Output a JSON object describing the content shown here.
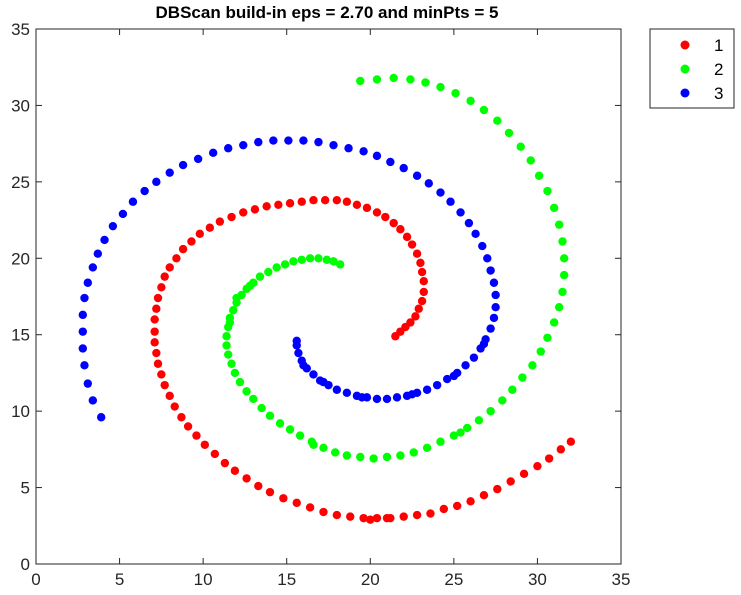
{
  "chart_data": {
    "type": "scatter",
    "title": "DBScan build-in  eps = 2.70 and minPts = 5",
    "xlabel": "",
    "ylabel": "",
    "xlim": [
      0,
      35
    ],
    "ylim": [
      0,
      35
    ],
    "xticks": [
      "0",
      "5",
      "10",
      "15",
      "20",
      "25",
      "30",
      "35"
    ],
    "yticks": [
      "0",
      "5",
      "10",
      "15",
      "20",
      "25",
      "30",
      "35"
    ],
    "grid": false,
    "legend_position": "outside-top-right",
    "series": [
      {
        "name": "1",
        "color": "#ff0000",
        "points": [
          [
            21.5,
            14.9
          ],
          [
            21.8,
            15.2
          ],
          [
            22.1,
            15.5
          ],
          [
            22.4,
            15.8
          ],
          [
            22.7,
            16.2
          ],
          [
            22.9,
            16.7
          ],
          [
            23.1,
            17.2
          ],
          [
            23.2,
            17.8
          ],
          [
            23.2,
            18.5
          ],
          [
            23.1,
            19.1
          ],
          [
            23.0,
            19.7
          ],
          [
            22.8,
            20.3
          ],
          [
            22.5,
            20.9
          ],
          [
            22.2,
            21.4
          ],
          [
            21.8,
            21.9
          ],
          [
            21.4,
            22.3
          ],
          [
            20.9,
            22.7
          ],
          [
            20.4,
            23.0
          ],
          [
            19.8,
            23.3
          ],
          [
            19.2,
            23.5
          ],
          [
            18.6,
            23.7
          ],
          [
            18.0,
            23.8
          ],
          [
            17.3,
            23.8
          ],
          [
            16.6,
            23.8
          ],
          [
            15.9,
            23.7
          ],
          [
            15.2,
            23.6
          ],
          [
            14.5,
            23.5
          ],
          [
            13.8,
            23.4
          ],
          [
            13.1,
            23.2
          ],
          [
            12.4,
            23.0
          ],
          [
            11.7,
            22.7
          ],
          [
            11.0,
            22.4
          ],
          [
            10.4,
            22.0
          ],
          [
            9.8,
            21.6
          ],
          [
            9.3,
            21.1
          ],
          [
            8.8,
            20.6
          ],
          [
            8.4,
            20.0
          ],
          [
            8.0,
            19.4
          ],
          [
            7.7,
            18.8
          ],
          [
            7.5,
            18.1
          ],
          [
            7.3,
            17.4
          ],
          [
            7.2,
            16.7
          ],
          [
            7.1,
            16.0
          ],
          [
            7.1,
            15.2
          ],
          [
            7.1,
            14.5
          ],
          [
            7.2,
            13.8
          ],
          [
            7.3,
            13.1
          ],
          [
            7.5,
            12.4
          ],
          [
            7.7,
            11.7
          ],
          [
            8.0,
            11.0
          ],
          [
            8.3,
            10.3
          ],
          [
            8.7,
            9.6
          ],
          [
            9.1,
            9.0
          ],
          [
            9.6,
            8.4
          ],
          [
            10.1,
            7.8
          ],
          [
            10.7,
            7.2
          ],
          [
            11.3,
            6.6
          ],
          [
            11.9,
            6.1
          ],
          [
            12.6,
            5.6
          ],
          [
            13.3,
            5.1
          ],
          [
            14.0,
            4.7
          ],
          [
            14.8,
            4.3
          ],
          [
            15.6,
            4.0
          ],
          [
            16.4,
            3.7
          ],
          [
            17.2,
            3.4
          ],
          [
            18.0,
            3.2
          ],
          [
            18.8,
            3.1
          ],
          [
            19.6,
            3.0
          ],
          [
            20.4,
            3.0
          ],
          [
            21.2,
            3.0
          ],
          [
            22.0,
            3.1
          ],
          [
            22.8,
            3.2
          ],
          [
            23.6,
            3.3
          ],
          [
            24.4,
            3.6
          ],
          [
            25.2,
            3.8
          ],
          [
            26.0,
            4.1
          ],
          [
            26.8,
            4.5
          ],
          [
            27.6,
            4.9
          ],
          [
            28.4,
            5.4
          ],
          [
            29.2,
            5.9
          ],
          [
            30.0,
            6.4
          ],
          [
            30.7,
            6.9
          ],
          [
            31.4,
            7.5
          ],
          [
            32.0,
            8.0
          ],
          [
            20.0,
            2.9
          ],
          [
            21.0,
            3.0
          ]
        ]
      },
      {
        "name": "2",
        "color": "#00ff00",
        "points": [
          [
            18.2,
            19.6
          ],
          [
            17.8,
            19.8
          ],
          [
            17.4,
            19.9
          ],
          [
            16.9,
            20.0
          ],
          [
            16.4,
            20.0
          ],
          [
            15.9,
            19.9
          ],
          [
            15.4,
            19.8
          ],
          [
            14.9,
            19.6
          ],
          [
            14.4,
            19.4
          ],
          [
            13.9,
            19.1
          ],
          [
            13.4,
            18.8
          ],
          [
            13.0,
            18.4
          ],
          [
            12.6,
            18.0
          ],
          [
            12.3,
            17.6
          ],
          [
            12.0,
            17.1
          ],
          [
            11.8,
            16.6
          ],
          [
            11.6,
            16.1
          ],
          [
            11.5,
            15.5
          ],
          [
            11.4,
            14.9
          ],
          [
            11.4,
            14.3
          ],
          [
            11.5,
            13.7
          ],
          [
            11.7,
            13.1
          ],
          [
            11.9,
            12.5
          ],
          [
            12.2,
            11.9
          ],
          [
            12.6,
            11.3
          ],
          [
            13.0,
            10.8
          ],
          [
            13.5,
            10.2
          ],
          [
            14.0,
            9.7
          ],
          [
            14.6,
            9.2
          ],
          [
            15.2,
            8.8
          ],
          [
            15.8,
            8.4
          ],
          [
            16.5,
            8.0
          ],
          [
            17.2,
            7.6
          ],
          [
            17.9,
            7.3
          ],
          [
            18.6,
            7.1
          ],
          [
            19.4,
            7.0
          ],
          [
            20.2,
            6.9
          ],
          [
            21.0,
            7.0
          ],
          [
            21.8,
            7.1
          ],
          [
            22.6,
            7.3
          ],
          [
            23.4,
            7.6
          ],
          [
            24.2,
            8.0
          ],
          [
            25.0,
            8.4
          ],
          [
            25.8,
            8.9
          ],
          [
            26.5,
            9.4
          ],
          [
            27.2,
            10.0
          ],
          [
            27.9,
            10.7
          ],
          [
            28.5,
            11.4
          ],
          [
            29.1,
            12.2
          ],
          [
            29.7,
            13.0
          ],
          [
            30.2,
            13.9
          ],
          [
            30.6,
            14.8
          ],
          [
            31.0,
            15.8
          ],
          [
            31.3,
            16.8
          ],
          [
            31.5,
            17.8
          ],
          [
            31.6,
            18.9
          ],
          [
            31.6,
            20.0
          ],
          [
            31.5,
            21.1
          ],
          [
            31.3,
            22.2
          ],
          [
            31.0,
            23.3
          ],
          [
            30.6,
            24.4
          ],
          [
            30.1,
            25.4
          ],
          [
            29.6,
            26.4
          ],
          [
            29.0,
            27.3
          ],
          [
            28.3,
            28.2
          ],
          [
            27.6,
            29.0
          ],
          [
            26.8,
            29.7
          ],
          [
            26.0,
            30.3
          ],
          [
            25.1,
            30.8
          ],
          [
            24.2,
            31.2
          ],
          [
            23.3,
            31.5
          ],
          [
            22.4,
            31.7
          ],
          [
            21.4,
            31.8
          ],
          [
            20.4,
            31.7
          ],
          [
            19.4,
            31.6
          ],
          [
            12.0,
            17.4
          ],
          [
            11.6,
            15.8
          ],
          [
            12.8,
            18.2
          ],
          [
            16.6,
            7.8
          ],
          [
            25.4,
            8.6
          ]
        ]
      },
      {
        "name": "3",
        "color": "#0000ff",
        "points": [
          [
            15.6,
            14.6
          ],
          [
            15.6,
            14.3
          ],
          [
            15.7,
            13.8
          ],
          [
            15.9,
            13.3
          ],
          [
            16.2,
            12.8
          ],
          [
            16.6,
            12.4
          ],
          [
            17.0,
            12.0
          ],
          [
            17.5,
            11.7
          ],
          [
            18.0,
            11.4
          ],
          [
            18.6,
            11.2
          ],
          [
            19.2,
            11.0
          ],
          [
            19.8,
            10.9
          ],
          [
            20.4,
            10.8
          ],
          [
            21.0,
            10.8
          ],
          [
            21.6,
            10.9
          ],
          [
            22.2,
            11.0
          ],
          [
            22.8,
            11.2
          ],
          [
            23.4,
            11.4
          ],
          [
            24.0,
            11.7
          ],
          [
            24.6,
            12.1
          ],
          [
            25.2,
            12.5
          ],
          [
            25.7,
            13.0
          ],
          [
            26.2,
            13.5
          ],
          [
            26.6,
            14.1
          ],
          [
            26.9,
            14.7
          ],
          [
            27.2,
            15.4
          ],
          [
            27.4,
            16.1
          ],
          [
            27.5,
            16.8
          ],
          [
            27.5,
            17.6
          ],
          [
            27.4,
            18.4
          ],
          [
            27.2,
            19.2
          ],
          [
            27.0,
            20.0
          ],
          [
            26.7,
            20.8
          ],
          [
            26.3,
            21.6
          ],
          [
            25.9,
            22.3
          ],
          [
            25.4,
            23.0
          ],
          [
            24.8,
            23.7
          ],
          [
            24.2,
            24.3
          ],
          [
            23.5,
            24.9
          ],
          [
            22.8,
            25.4
          ],
          [
            22.0,
            25.9
          ],
          [
            21.2,
            26.3
          ],
          [
            20.4,
            26.7
          ],
          [
            19.6,
            27.0
          ],
          [
            18.7,
            27.2
          ],
          [
            17.8,
            27.4
          ],
          [
            16.9,
            27.6
          ],
          [
            16.0,
            27.7
          ],
          [
            15.1,
            27.7
          ],
          [
            14.2,
            27.7
          ],
          [
            13.3,
            27.6
          ],
          [
            12.4,
            27.4
          ],
          [
            11.5,
            27.2
          ],
          [
            10.6,
            26.9
          ],
          [
            9.7,
            26.5
          ],
          [
            8.8,
            26.1
          ],
          [
            8.0,
            25.6
          ],
          [
            7.2,
            25.0
          ],
          [
            6.5,
            24.4
          ],
          [
            5.8,
            23.7
          ],
          [
            5.2,
            22.9
          ],
          [
            4.6,
            22.1
          ],
          [
            4.1,
            21.2
          ],
          [
            3.7,
            20.3
          ],
          [
            3.4,
            19.4
          ],
          [
            3.1,
            18.4
          ],
          [
            2.9,
            17.4
          ],
          [
            2.8,
            16.3
          ],
          [
            2.8,
            15.2
          ],
          [
            2.8,
            14.1
          ],
          [
            2.9,
            13.0
          ],
          [
            3.1,
            11.8
          ],
          [
            3.4,
            10.7
          ],
          [
            3.9,
            9.6
          ],
          [
            16.0,
            13.0
          ],
          [
            17.2,
            11.9
          ],
          [
            19.5,
            10.9
          ],
          [
            22.5,
            11.1
          ],
          [
            25.0,
            12.3
          ],
          [
            26.8,
            14.4
          ]
        ]
      }
    ]
  }
}
